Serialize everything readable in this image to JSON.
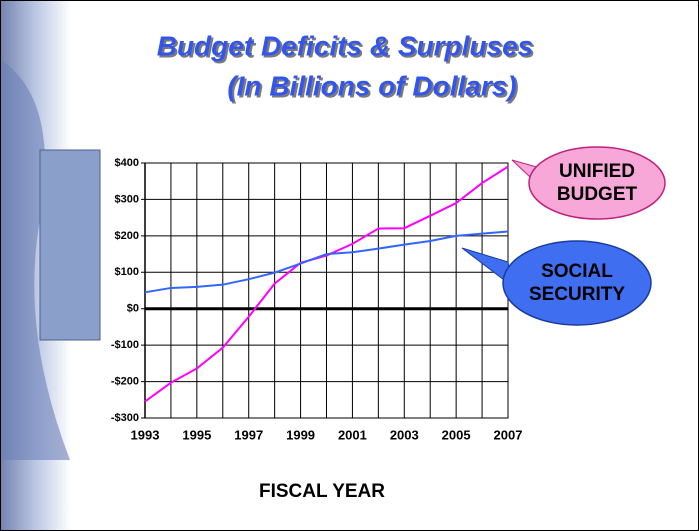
{
  "chart_data": {
    "type": "line",
    "title": "Budget Deficits & Surpluses",
    "subtitle": "(In Billions of Dollars)",
    "x_label": "FISCAL YEAR",
    "x": [
      1993,
      1994,
      1995,
      1996,
      1997,
      1998,
      1999,
      2000,
      2001,
      2002,
      2003,
      2004,
      2005,
      2006,
      2007
    ],
    "series": [
      {
        "name": "UNIFIED BUDGET",
        "color": "#ff00ff",
        "values": [
          -255,
          -203,
          -164,
          -107,
          -22,
          69,
          126,
          146,
          178,
          220,
          221,
          255,
          290,
          345,
          390
        ]
      },
      {
        "name": "SOCIAL SECURITY",
        "color": "#3366ff",
        "values": [
          45,
          57,
          60,
          66,
          81,
          99,
          124,
          150,
          155,
          165,
          176,
          186,
          200,
          206,
          212
        ]
      }
    ],
    "xlim": [
      1993,
      2007
    ],
    "xticks": [
      1993,
      1995,
      1997,
      1999,
      2001,
      2003,
      2005,
      2007
    ],
    "ylim": [
      -300,
      400
    ],
    "yticks": [
      {
        "value": 400,
        "label": "$400"
      },
      {
        "value": 300,
        "label": "$300"
      },
      {
        "value": 200,
        "label": "$200"
      },
      {
        "value": 100,
        "label": "$100"
      },
      {
        "value": 0,
        "label": "$0"
      },
      {
        "value": -100,
        "label": "-$100"
      },
      {
        "value": -200,
        "label": "-$200"
      },
      {
        "value": -300,
        "label": "-$300"
      }
    ],
    "grid": true
  }
}
